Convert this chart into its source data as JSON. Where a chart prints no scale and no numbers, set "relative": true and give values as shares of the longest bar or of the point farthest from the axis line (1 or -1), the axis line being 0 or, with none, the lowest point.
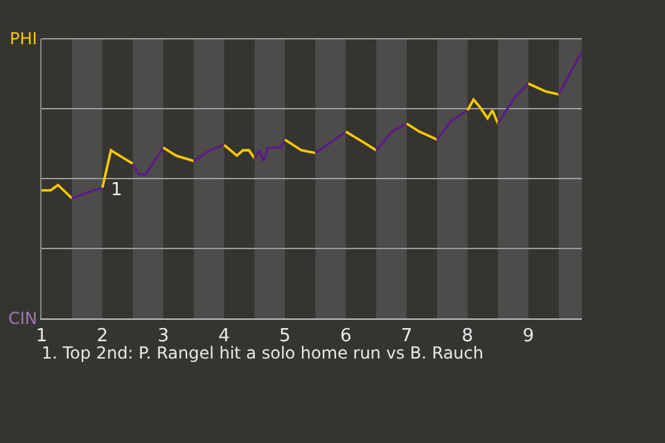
{
  "chart_data": {
    "type": "line",
    "relative": true,
    "grid": "y",
    "marker": "none",
    "line_style": "solid",
    "xlim": [
      1,
      9.88
    ],
    "xticks": [
      1,
      2,
      3,
      4,
      5,
      6,
      7,
      8,
      9
    ],
    "bands": [
      {
        "axis": "x",
        "from": 1.5,
        "to": 2,
        "color": "#4d4c4a"
      },
      {
        "axis": "x",
        "from": 2.5,
        "to": 3,
        "color": "#4d4c4a"
      },
      {
        "axis": "x",
        "from": 3.5,
        "to": 4,
        "color": "#4d4c4a"
      },
      {
        "axis": "x",
        "from": 4.5,
        "to": 5,
        "color": "#4d4c4a"
      },
      {
        "axis": "x",
        "from": 5.5,
        "to": 6,
        "color": "#4d4c4a"
      },
      {
        "axis": "x",
        "from": 6.5,
        "to": 7,
        "color": "#4d4c4a"
      },
      {
        "axis": "x",
        "from": 7.5,
        "to": 8,
        "color": "#4d4c4a"
      },
      {
        "axis": "x",
        "from": 8.5,
        "to": 9,
        "color": "#4d4c4a"
      },
      {
        "axis": "x",
        "from": 9.5,
        "to": 9.88,
        "color": "#4d4c4a"
      }
    ],
    "annotations": [
      "PHI",
      "CIN",
      {
        "text": "1",
        "x": 2.04,
        "y": 0.53
      },
      "1. Top 2nd: P. Rangel hit a solo home run vs B. Rauch"
    ],
    "series": [
      {
        "color": "#f5c800",
        "x": [
          1.0,
          1.15,
          1.27,
          1.5
        ],
        "values": [
          0.48,
          0.48,
          0.5,
          0.45
        ]
      },
      {
        "color": "#5a1e82",
        "x": [
          1.5,
          1.73,
          2.0
        ],
        "values": [
          0.45,
          0.47,
          0.49
        ]
      },
      {
        "color": "#f5c800",
        "x": [
          2.0,
          2.04,
          2.14,
          2.28,
          2.5
        ],
        "values": [
          0.49,
          0.53,
          0.63,
          0.61,
          0.58
        ]
      },
      {
        "color": "#5a1e82",
        "x": [
          2.5,
          2.6,
          2.71,
          3.0
        ],
        "values": [
          0.58,
          0.54,
          0.54,
          0.64
        ]
      },
      {
        "color": "#f5c800",
        "x": [
          3.0,
          3.21,
          3.5
        ],
        "values": [
          0.64,
          0.61,
          0.59
        ]
      },
      {
        "color": "#5a1e82",
        "x": [
          3.5,
          3.77,
          4.0
        ],
        "values": [
          0.59,
          0.63,
          0.65
        ]
      },
      {
        "color": "#f5c800",
        "x": [
          4.0,
          4.21,
          4.31,
          4.41,
          4.5
        ],
        "values": [
          0.65,
          0.61,
          0.63,
          0.63,
          0.6
        ]
      },
      {
        "color": "#5a1e82",
        "x": [
          4.5,
          4.58,
          4.65,
          4.72,
          4.93,
          5.0
        ],
        "values": [
          0.6,
          0.63,
          0.59,
          0.64,
          0.64,
          0.67
        ]
      },
      {
        "color": "#f5c800",
        "x": [
          5.0,
          5.27,
          5.5
        ],
        "values": [
          0.67,
          0.63,
          0.62
        ]
      },
      {
        "color": "#5a1e82",
        "x": [
          5.5,
          6.0
        ],
        "values": [
          0.62,
          0.7
        ]
      },
      {
        "color": "#f5c800",
        "x": [
          6.0,
          6.29,
          6.5
        ],
        "values": [
          0.7,
          0.66,
          0.63
        ]
      },
      {
        "color": "#5a1e82",
        "x": [
          6.5,
          6.76,
          7.0
        ],
        "values": [
          0.63,
          0.7,
          0.73
        ]
      },
      {
        "color": "#f5c800",
        "x": [
          7.0,
          7.21,
          7.5
        ],
        "values": [
          0.73,
          0.7,
          0.67
        ]
      },
      {
        "color": "#5a1e82",
        "x": [
          7.5,
          7.73,
          8.0
        ],
        "values": [
          0.67,
          0.74,
          0.78
        ]
      },
      {
        "color": "#f5c800",
        "x": [
          8.0,
          8.1,
          8.21,
          8.33,
          8.41,
          8.5
        ],
        "values": [
          0.78,
          0.82,
          0.79,
          0.75,
          0.78,
          0.73
        ]
      },
      {
        "color": "#5a1e82",
        "x": [
          8.5,
          8.78,
          9.0
        ],
        "values": [
          0.73,
          0.83,
          0.88
        ]
      },
      {
        "color": "#f5c800",
        "x": [
          9.0,
          9.29,
          9.5
        ],
        "values": [
          0.88,
          0.85,
          0.84
        ]
      },
      {
        "color": "#5a1e82",
        "x": [
          9.5,
          9.88
        ],
        "values": [
          0.84,
          1.0
        ]
      }
    ]
  }
}
